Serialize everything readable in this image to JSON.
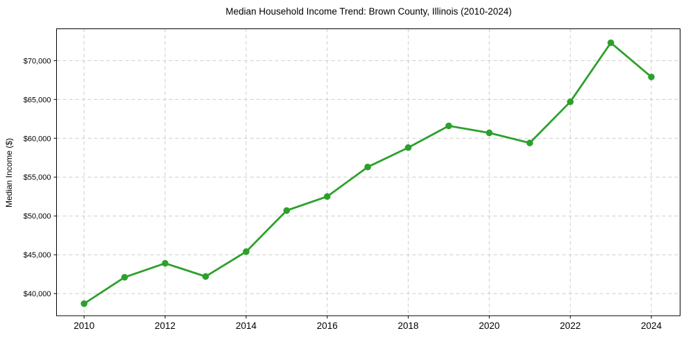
{
  "chart_data": {
    "type": "line",
    "title": "Median Household Income Trend: Brown County, Illinois (2010-2024)",
    "xlabel": "",
    "ylabel": "Median Income ($)",
    "x": [
      2010,
      2011,
      2012,
      2013,
      2014,
      2015,
      2016,
      2017,
      2018,
      2019,
      2020,
      2021,
      2022,
      2023,
      2024
    ],
    "series": [
      {
        "name": "Median household income",
        "values": [
          38700,
          42100,
          43900,
          42200,
          45400,
          50700,
          52500,
          56300,
          58800,
          61600,
          60700,
          59400,
          64700,
          72300,
          67900
        ]
      }
    ],
    "xticks": [
      2010,
      2012,
      2014,
      2016,
      2018,
      2020,
      2022,
      2024
    ],
    "xtick_labels": [
      "2010",
      "2012",
      "2014",
      "2016",
      "2018",
      "2020",
      "2022",
      "2024"
    ],
    "yticks": [
      40000,
      45000,
      50000,
      55000,
      60000,
      65000,
      70000
    ],
    "ytick_labels": [
      "$40,000",
      "$45,000",
      "$50,000",
      "$55,000",
      "$60,000",
      "$65,000",
      "$70,000"
    ],
    "xlim": [
      2009.32,
      2024.71
    ],
    "ylim": [
      37150,
      74100
    ],
    "grid": true,
    "grid_style": "dashed",
    "legend": "none",
    "marker": "circle",
    "colors": {
      "line": "#2ca02c",
      "marker": "#2ca02c",
      "grid": "#cccccc",
      "spine": "#000000",
      "text": "#000000",
      "background": "#ffffff"
    }
  }
}
